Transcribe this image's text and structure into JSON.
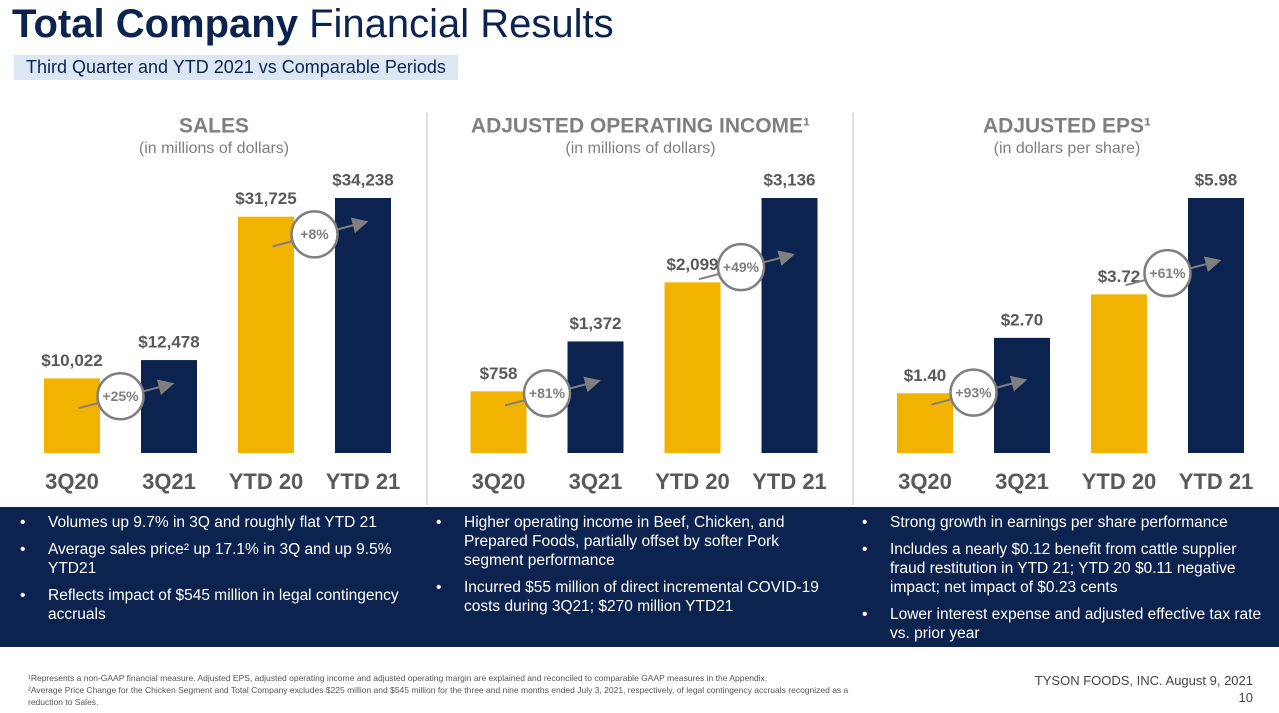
{
  "header": {
    "title_bold": "Total Company",
    "title_rest": "Financial Results",
    "subtitle": "Third Quarter and YTD 2021 vs Comparable Periods"
  },
  "chart_data": [
    {
      "type": "bar",
      "title": "SALES",
      "subtitle": "(in millions of dollars)",
      "categories": [
        "3Q20",
        "3Q21",
        "YTD 20",
        "YTD 21"
      ],
      "values": [
        10022,
        12478,
        31725,
        34238
      ],
      "value_labels": [
        "$10,022",
        "$12,478",
        "$31,725",
        "$34,238"
      ],
      "colors": [
        "#f2b300",
        "#0c2350",
        "#f2b300",
        "#0c2350"
      ],
      "annotations": [
        "+25%",
        "+8%"
      ]
    },
    {
      "type": "bar",
      "title": "ADJUSTED OPERATING INCOME¹",
      "subtitle": "(in millions of dollars)",
      "categories": [
        "3Q20",
        "3Q21",
        "YTD 20",
        "YTD 21"
      ],
      "values": [
        758,
        1372,
        2099,
        3136
      ],
      "value_labels": [
        "$758",
        "$1,372",
        "$2,099",
        "$3,136"
      ],
      "colors": [
        "#f2b300",
        "#0c2350",
        "#f2b300",
        "#0c2350"
      ],
      "annotations": [
        "+81%",
        "+49%"
      ]
    },
    {
      "type": "bar",
      "title": "ADJUSTED EPS¹",
      "subtitle": "(in dollars per share)",
      "categories": [
        "3Q20",
        "3Q21",
        "YTD 20",
        "YTD 21"
      ],
      "values": [
        1.4,
        2.7,
        3.72,
        5.98
      ],
      "value_labels": [
        "$1.40",
        "$2.70",
        "$3.72",
        "$5.98"
      ],
      "colors": [
        "#f2b300",
        "#0c2350",
        "#f2b300",
        "#0c2350"
      ],
      "annotations": [
        "+93%",
        "+61%"
      ]
    }
  ],
  "bullets": [
    [
      "Volumes up 9.7% in 3Q and roughly flat YTD 21",
      "Average sales price² up 17.1% in 3Q and up 9.5% YTD21",
      "Reflects impact of $545 million in legal contingency accruals"
    ],
    [
      "Higher operating income in Beef, Chicken, and Prepared Foods, partially offset by softer Pork segment performance",
      "Incurred $55 million of direct incremental COVID-19 costs during 3Q21; $270 million YTD21"
    ],
    [
      "Strong growth in earnings per share performance",
      "Includes a nearly $0.12 benefit from cattle supplier fraud restitution in YTD 21; YTD 20 $0.11 negative impact; net impact of $0.23 cents",
      "Lower interest expense and adjusted effective tax rate vs. prior year"
    ]
  ],
  "footnotes": [
    "¹Represents a non-GAAP financial measure. Adjusted EPS, adjusted operating income and adjusted operating margin are explained and reconciled to comparable GAAP measures in the Appendix.",
    "²Average Price Change for the Chicken Segment and Total Company excludes $225 million and $545 million for the three and nine months ended July 3, 2021, respectively, of legal contingency accruals recognized as a reduction to Sales."
  ],
  "footer": {
    "company": "TYSON FOODS, INC. August 9, 2021",
    "page": "10"
  }
}
